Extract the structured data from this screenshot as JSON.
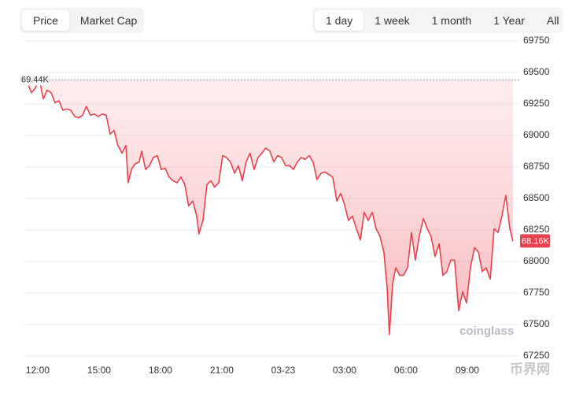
{
  "tabs": {
    "metric": [
      "Price",
      "Market Cap"
    ],
    "range": [
      "1 day",
      "1 week",
      "1 month",
      "1 Year",
      "All"
    ]
  },
  "watermark": "coinglass",
  "site_watermark": "币界网",
  "chart_data": {
    "type": "area",
    "color": "#e8424f",
    "grid": true,
    "x": [
      -0.5,
      -0.31,
      -0.12,
      0.08,
      0.27,
      0.46,
      0.65,
      0.85,
      1.04,
      1.23,
      1.42,
      1.62,
      1.81,
      2.0,
      2.19,
      2.38,
      2.58,
      2.77,
      2.96,
      3.15,
      3.35,
      3.54,
      3.73,
      3.92,
      4.12,
      4.31,
      4.42,
      4.58,
      4.77,
      4.96,
      5.08,
      5.27,
      5.46,
      5.65,
      5.85,
      6.04,
      6.23,
      6.42,
      6.62,
      6.81,
      7.0,
      7.19,
      7.38,
      7.58,
      7.77,
      7.88,
      8.08,
      8.27,
      8.46,
      8.65,
      8.85,
      9.04,
      9.23,
      9.42,
      9.62,
      9.81,
      10.0,
      10.19,
      10.38,
      10.58,
      10.77,
      10.96,
      11.15,
      11.35,
      11.54,
      11.73,
      11.92,
      12.12,
      12.31,
      12.5,
      12.69,
      12.88,
      13.08,
      13.27,
      13.46,
      13.65,
      13.85,
      14.04,
      14.23,
      14.42,
      14.62,
      14.81,
      15.0,
      15.19,
      15.38,
      15.58,
      15.77,
      15.96,
      16.15,
      16.35,
      16.54,
      16.73,
      16.92,
      17.08,
      17.19,
      17.35,
      17.5,
      17.69,
      17.88,
      18.08,
      18.27,
      18.46,
      18.65,
      18.85,
      19.04,
      19.23,
      19.42,
      19.62,
      19.81,
      20.0,
      20.19,
      20.38,
      20.58,
      20.77,
      20.96,
      21.15,
      21.35,
      21.54,
      21.73,
      21.92,
      22.12,
      22.31,
      22.5,
      22.69,
      22.88,
      23.08,
      23.23
    ],
    "values": [
      69420,
      69340,
      69375,
      69450,
      69290,
      69360,
      69340,
      69260,
      69275,
      69200,
      69210,
      69200,
      69150,
      69140,
      69160,
      69230,
      69160,
      69170,
      69150,
      69170,
      69160,
      69010,
      69040,
      68920,
      68860,
      68920,
      68625,
      68730,
      68775,
      68790,
      68875,
      68730,
      68760,
      68825,
      68840,
      68730,
      68740,
      68670,
      68640,
      68625,
      68670,
      68610,
      68440,
      68480,
      68360,
      68220,
      68325,
      68610,
      68640,
      68590,
      68625,
      68840,
      68825,
      68790,
      68700,
      68760,
      68640,
      68790,
      68860,
      68730,
      68825,
      68860,
      68900,
      68875,
      68790,
      68840,
      68825,
      68760,
      68760,
      68730,
      68790,
      68825,
      68810,
      68840,
      68790,
      68650,
      68700,
      68710,
      68690,
      68670,
      68480,
      68540,
      68450,
      68325,
      68360,
      68260,
      68170,
      68390,
      68325,
      68390,
      68260,
      68200,
      68075,
      67790,
      67420,
      67825,
      67950,
      67890,
      67890,
      67950,
      68230,
      68010,
      68200,
      68340,
      68260,
      68200,
      68040,
      68140,
      67890,
      67920,
      68010,
      68010,
      67610,
      67760,
      67670,
      67950,
      68110,
      68075,
      67920,
      67950,
      67860,
      68260,
      68230,
      68360,
      68525,
      68260,
      68160
    ],
    "xlim": [
      -0.69,
      23.54
    ],
    "xticks": [
      {
        "value": 0,
        "label": "12:00"
      },
      {
        "value": 3,
        "label": "15:00"
      },
      {
        "value": 6,
        "label": "18:00"
      },
      {
        "value": 9,
        "label": "21:00"
      },
      {
        "value": 12,
        "label": "03-23"
      },
      {
        "value": 15,
        "label": "03:00"
      },
      {
        "value": 18,
        "label": "06:00"
      },
      {
        "value": 21,
        "label": "09:00"
      }
    ],
    "ylim": [
      67250,
      69750
    ],
    "yticks": [
      67250,
      67500,
      67750,
      68000,
      68250,
      68500,
      68750,
      69000,
      69250,
      69500,
      69750
    ],
    "reference_line": {
      "value": 69440,
      "label": "69.44K"
    },
    "current_price": {
      "value": 68160,
      "label": "68.16K"
    }
  }
}
